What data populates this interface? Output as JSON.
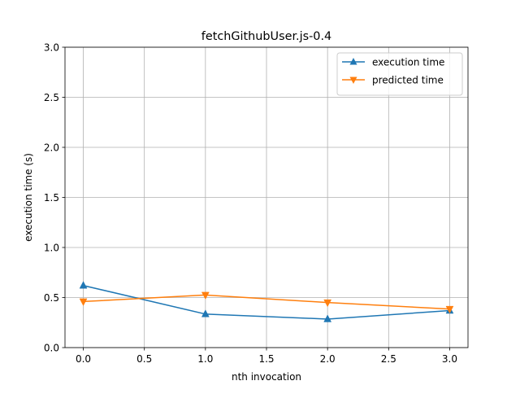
{
  "chart_data": {
    "type": "line",
    "title": "fetchGithubUser.js-0.4",
    "xlabel": "nth invocation",
    "ylabel": "execution time (s)",
    "xlim": [
      -0.15,
      3.15
    ],
    "ylim": [
      0,
      3.0
    ],
    "grid": true,
    "legend_position": "top-right",
    "x_ticks": [
      0.0,
      0.5,
      1.0,
      1.5,
      2.0,
      2.5,
      3.0
    ],
    "x_tick_labels": [
      "0.0",
      "0.5",
      "1.0",
      "1.5",
      "2.0",
      "2.5",
      "3.0"
    ],
    "y_ticks": [
      0.0,
      0.5,
      1.0,
      1.5,
      2.0,
      2.5,
      3.0
    ],
    "y_tick_labels": [
      "0.0",
      "0.5",
      "1.0",
      "1.5",
      "2.0",
      "2.5",
      "3.0"
    ],
    "x": [
      0,
      1,
      2,
      3
    ],
    "series": [
      {
        "name": "execution time",
        "color": "#1f77b4",
        "marker": "triangle-up",
        "values": [
          0.62,
          0.335,
          0.285,
          0.37
        ]
      },
      {
        "name": "predicted time",
        "color": "#ff7f0e",
        "marker": "triangle-down",
        "values": [
          0.46,
          0.525,
          0.45,
          0.385
        ]
      }
    ]
  }
}
